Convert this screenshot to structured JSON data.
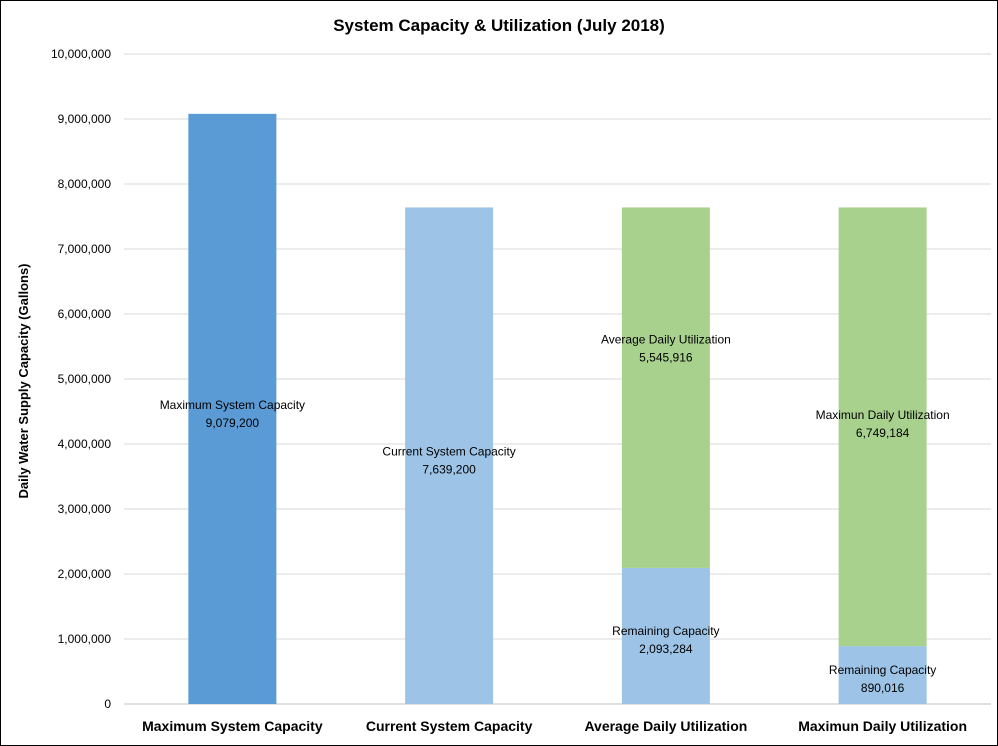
{
  "chart_data": {
    "type": "bar",
    "stacked": true,
    "title": "System Capacity & Utilization (July 2018)",
    "xlabel": "",
    "ylabel": "Daily Water Supply Capacity (Gallons)",
    "ylim": [
      0,
      10000000
    ],
    "yticks": [
      0,
      1000000,
      2000000,
      3000000,
      4000000,
      5000000,
      6000000,
      7000000,
      8000000,
      9000000,
      10000000
    ],
    "ytick_labels": [
      "0",
      "1,000,000",
      "2,000,000",
      "3,000,000",
      "4,000,000",
      "5,000,000",
      "6,000,000",
      "7,000,000",
      "8,000,000",
      "9,000,000",
      "10,000,000"
    ],
    "grid": true,
    "legend": "none",
    "categories": [
      "Maximum System Capacity",
      "Current System Capacity",
      "Average Daily Utilization",
      "Maximun Daily Utilization"
    ],
    "bars": [
      {
        "category": "Maximum System Capacity",
        "segments": [
          {
            "label": "Maximum System Capacity",
            "value_text": "9,079,200",
            "value": 9079200,
            "color": "#5b9bd5"
          }
        ]
      },
      {
        "category": "Current System Capacity",
        "segments": [
          {
            "label": "Current System Capacity",
            "value_text": "7,639,200",
            "value": 7639200,
            "color": "#9dc3e6"
          }
        ]
      },
      {
        "category": "Average Daily Utilization",
        "segments": [
          {
            "label": "Remaining Capacity",
            "value_text": "2,093,284",
            "value": 2093284,
            "color": "#9dc3e6"
          },
          {
            "label": "Average Daily Utilization",
            "value_text": "5,545,916",
            "value": 5545916,
            "color": "#a9d18e"
          }
        ]
      },
      {
        "category": "Maximun Daily Utilization",
        "segments": [
          {
            "label": "Remaining Capacity",
            "value_text": "890,016",
            "value": 890016,
            "color": "#9dc3e6"
          },
          {
            "label": "Maximun Daily Utilization",
            "value_text": "6,749,184",
            "value": 6749184,
            "color": "#a9d18e"
          }
        ]
      }
    ]
  }
}
